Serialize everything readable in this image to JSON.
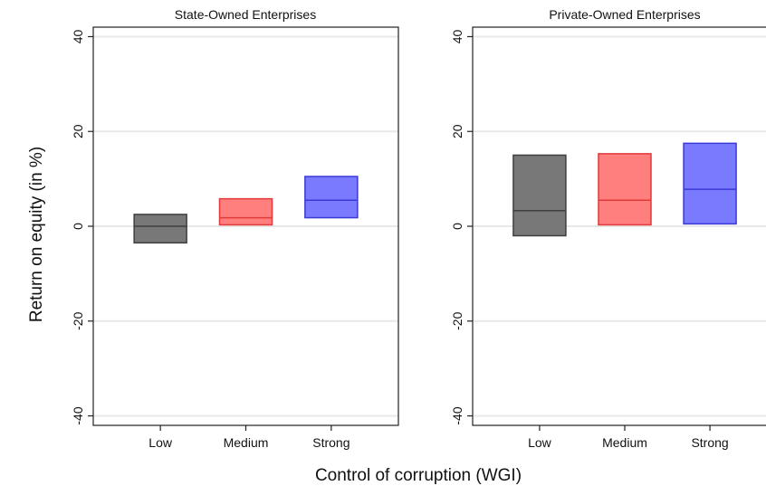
{
  "chart_data": {
    "type": "box",
    "ylabel": "Return on equity (in %)",
    "xlabel": "Control of corruption (WGI)",
    "ylim": [
      -42,
      42
    ],
    "yticks": [
      -40,
      -20,
      0,
      20,
      40
    ],
    "ytick_labels": [
      "-40",
      "-20",
      "0",
      "20",
      "40"
    ],
    "categories": [
      "Low",
      "Medium",
      "Strong"
    ],
    "colors": {
      "Low": {
        "fill": "#787878",
        "stroke": "#3f3f3f"
      },
      "Medium": {
        "fill": "#ff7f7f",
        "stroke": "#e03a3a"
      },
      "Strong": {
        "fill": "#7a7aff",
        "stroke": "#3a3ad6"
      }
    },
    "grid": true,
    "panels": [
      {
        "title": "State-Owned Enterprises",
        "boxes": [
          {
            "category": "Low",
            "q1": -3.5,
            "median": 0.0,
            "q3": 2.5
          },
          {
            "category": "Medium",
            "q1": 0.3,
            "median": 1.8,
            "q3": 5.8
          },
          {
            "category": "Strong",
            "q1": 1.8,
            "median": 5.5,
            "q3": 10.5
          }
        ]
      },
      {
        "title": "Private-Owned Enterprises",
        "boxes": [
          {
            "category": "Low",
            "q1": -2.0,
            "median": 3.3,
            "q3": 15.0
          },
          {
            "category": "Medium",
            "q1": 0.3,
            "median": 5.5,
            "q3": 15.3
          },
          {
            "category": "Strong",
            "q1": 0.5,
            "median": 7.8,
            "q3": 17.5
          }
        ]
      }
    ]
  }
}
